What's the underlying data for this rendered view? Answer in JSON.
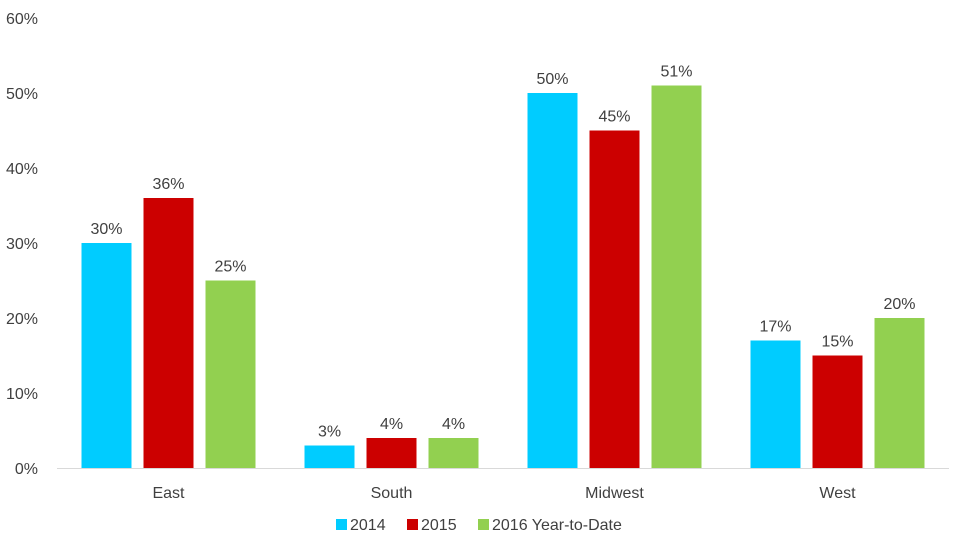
{
  "chart_data": {
    "type": "bar",
    "categories": [
      "East",
      "South",
      "Midwest",
      "West"
    ],
    "series": [
      {
        "name": "2014",
        "color": "#00CCFF",
        "values": [
          30,
          3,
          50,
          17
        ],
        "labels": [
          "30%",
          "3%",
          "50%",
          "17%"
        ]
      },
      {
        "name": "2015",
        "color": "#CC0000",
        "values": [
          36,
          4,
          45,
          15
        ],
        "labels": [
          "36%",
          "4%",
          "45%",
          "15%"
        ]
      },
      {
        "name": "2016 Year-to-Date",
        "color": "#92D050",
        "values": [
          25,
          4,
          51,
          20
        ],
        "labels": [
          "25%",
          "4%",
          "51%",
          "20%"
        ]
      }
    ],
    "ylim": [
      0,
      60
    ],
    "yticks": [
      0,
      10,
      20,
      30,
      40,
      50,
      60
    ],
    "ytick_labels": [
      "0%",
      "10%",
      "20%",
      "30%",
      "40%",
      "50%",
      "60%"
    ],
    "grid": false,
    "legend_position": "bottom",
    "title": "",
    "xlabel": "",
    "ylabel": ""
  }
}
